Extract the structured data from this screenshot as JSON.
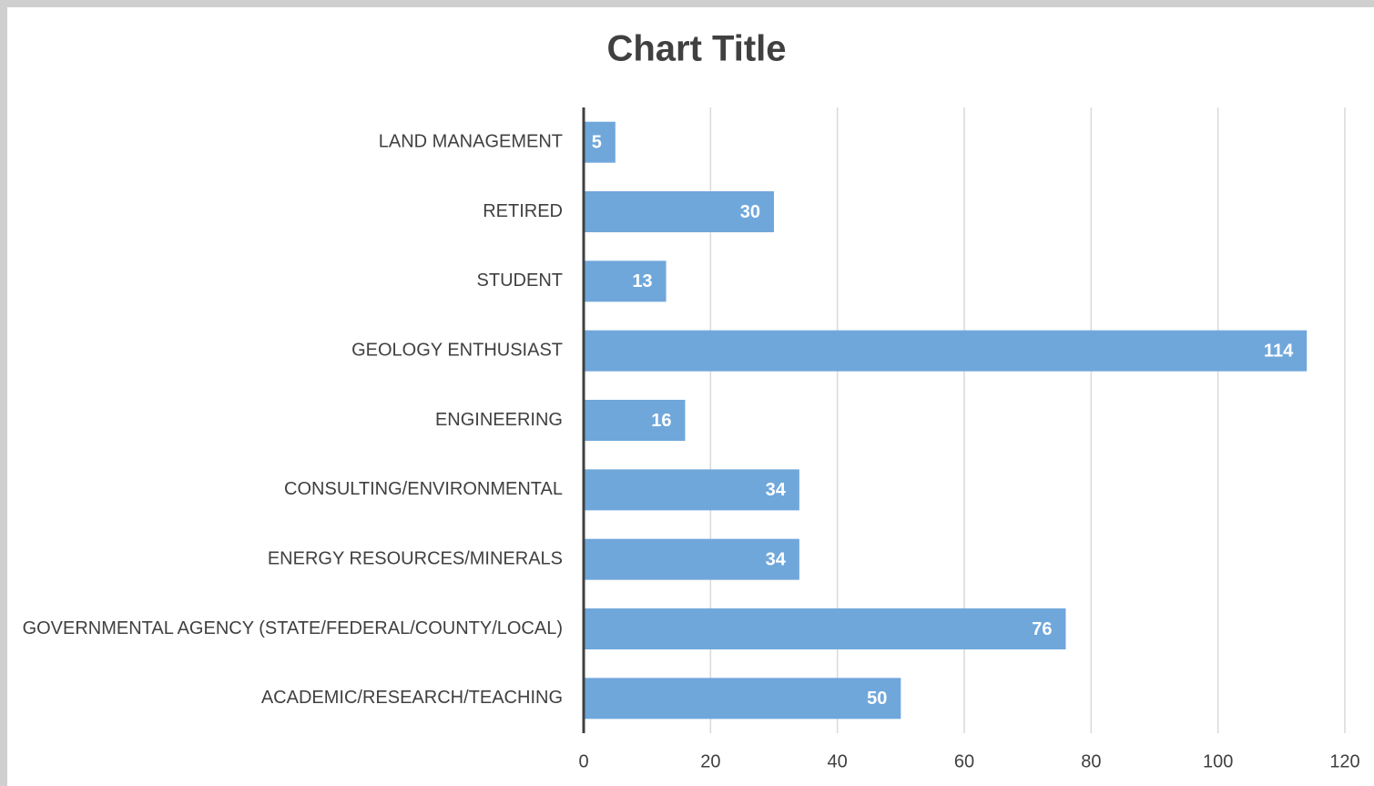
{
  "chart_data": {
    "type": "bar",
    "orientation": "horizontal",
    "title": "Chart Title",
    "categories": [
      "LAND MANAGEMENT",
      "RETIRED",
      "STUDENT",
      "GEOLOGY ENTHUSIAST",
      "ENGINEERING",
      "CONSULTING/ENVIRONMENTAL",
      "ENERGY RESOURCES/MINERALS",
      "GOVERNMENTAL AGENCY (STATE/FEDERAL/COUNTY/LOCAL)",
      "ACADEMIC/RESEARCH/TEACHING"
    ],
    "values": [
      5,
      30,
      13,
      114,
      16,
      34,
      34,
      76,
      50
    ],
    "color": "#70a7db",
    "xlim": [
      0,
      120
    ],
    "xticks": [
      0,
      20,
      40,
      60,
      80,
      100,
      120
    ],
    "grid": true
  }
}
